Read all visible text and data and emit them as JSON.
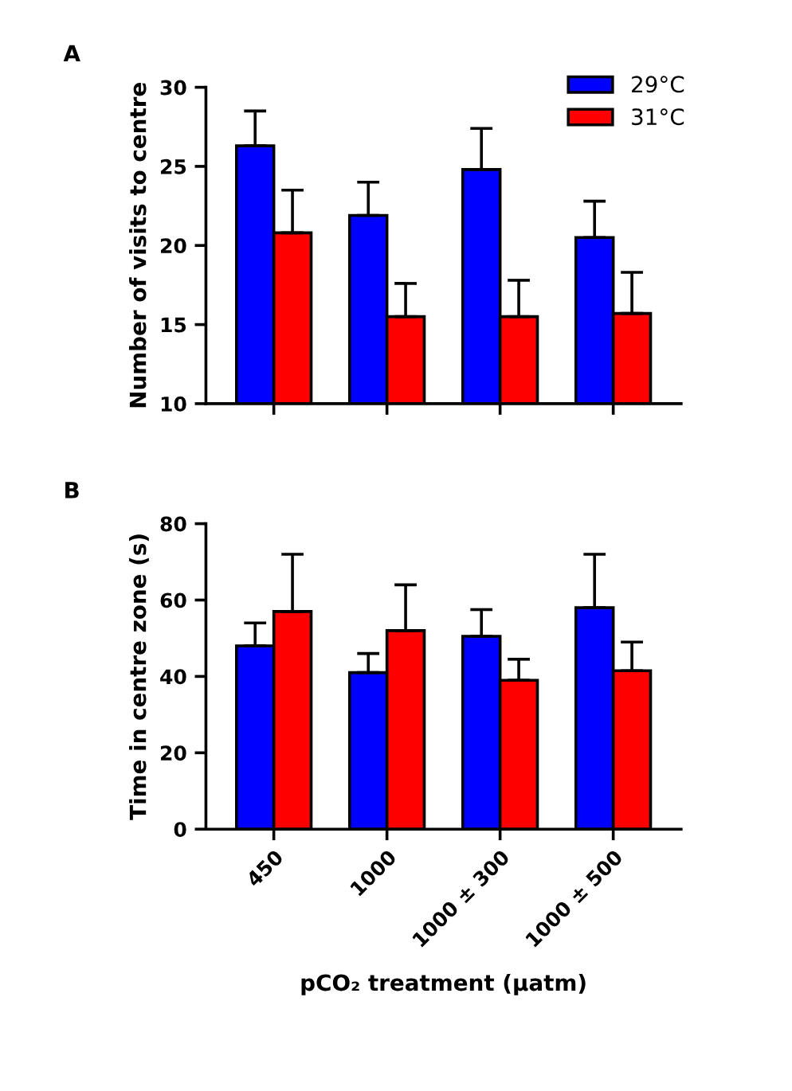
{
  "chart_data": [
    {
      "type": "bar",
      "title": "A",
      "ylabel": "Number of visits to centre",
      "categories": [
        null,
        null,
        null,
        null
      ],
      "tick_labels": "y",
      "ylim": [
        10,
        30
      ],
      "yticks": [
        10,
        15,
        20,
        25,
        30
      ],
      "grid": false,
      "legend": "top right",
      "series": [
        {
          "name": "29°C",
          "color": "#0000ff",
          "values": [
            26.3,
            21.9,
            24.8,
            20.5
          ],
          "errors": [
            [
              26.3,
              28.5
            ],
            [
              21.9,
              24.0
            ],
            [
              24.8,
              27.4
            ],
            [
              20.5,
              22.8
            ]
          ]
        },
        {
          "name": "31°C",
          "color": "#ff0000",
          "values": [
            20.8,
            15.5,
            15.5,
            15.7
          ],
          "errors": [
            [
              20.8,
              23.5
            ],
            [
              15.5,
              17.6
            ],
            [
              15.5,
              17.8
            ],
            [
              15.7,
              18.3
            ]
          ]
        }
      ]
    },
    {
      "type": "bar",
      "title": "B",
      "ylabel": "Time in centre zone (s)",
      "xlabel": "pCO₂ treatment (μatm)",
      "categories": [
        "450",
        "1000",
        "1000 ± 300",
        "1000 ± 500"
      ],
      "ylim": [
        0,
        80
      ],
      "yticks": [
        0,
        20,
        40,
        60,
        80
      ],
      "grid": false,
      "legend": false,
      "series": [
        {
          "color": "#0000ff",
          "values": [
            48,
            41,
            50.5,
            58
          ],
          "errors": [
            [
              48,
              54
            ],
            [
              41,
              46
            ],
            [
              50.5,
              57.5
            ],
            [
              58,
              72
            ]
          ]
        },
        {
          "color": "#ff0000",
          "values": [
            57,
            52,
            39,
            41.5
          ],
          "errors": [
            [
              57,
              72
            ],
            [
              52,
              64
            ],
            [
              39,
              44.5
            ],
            [
              41.5,
              49
            ]
          ]
        }
      ]
    }
  ]
}
